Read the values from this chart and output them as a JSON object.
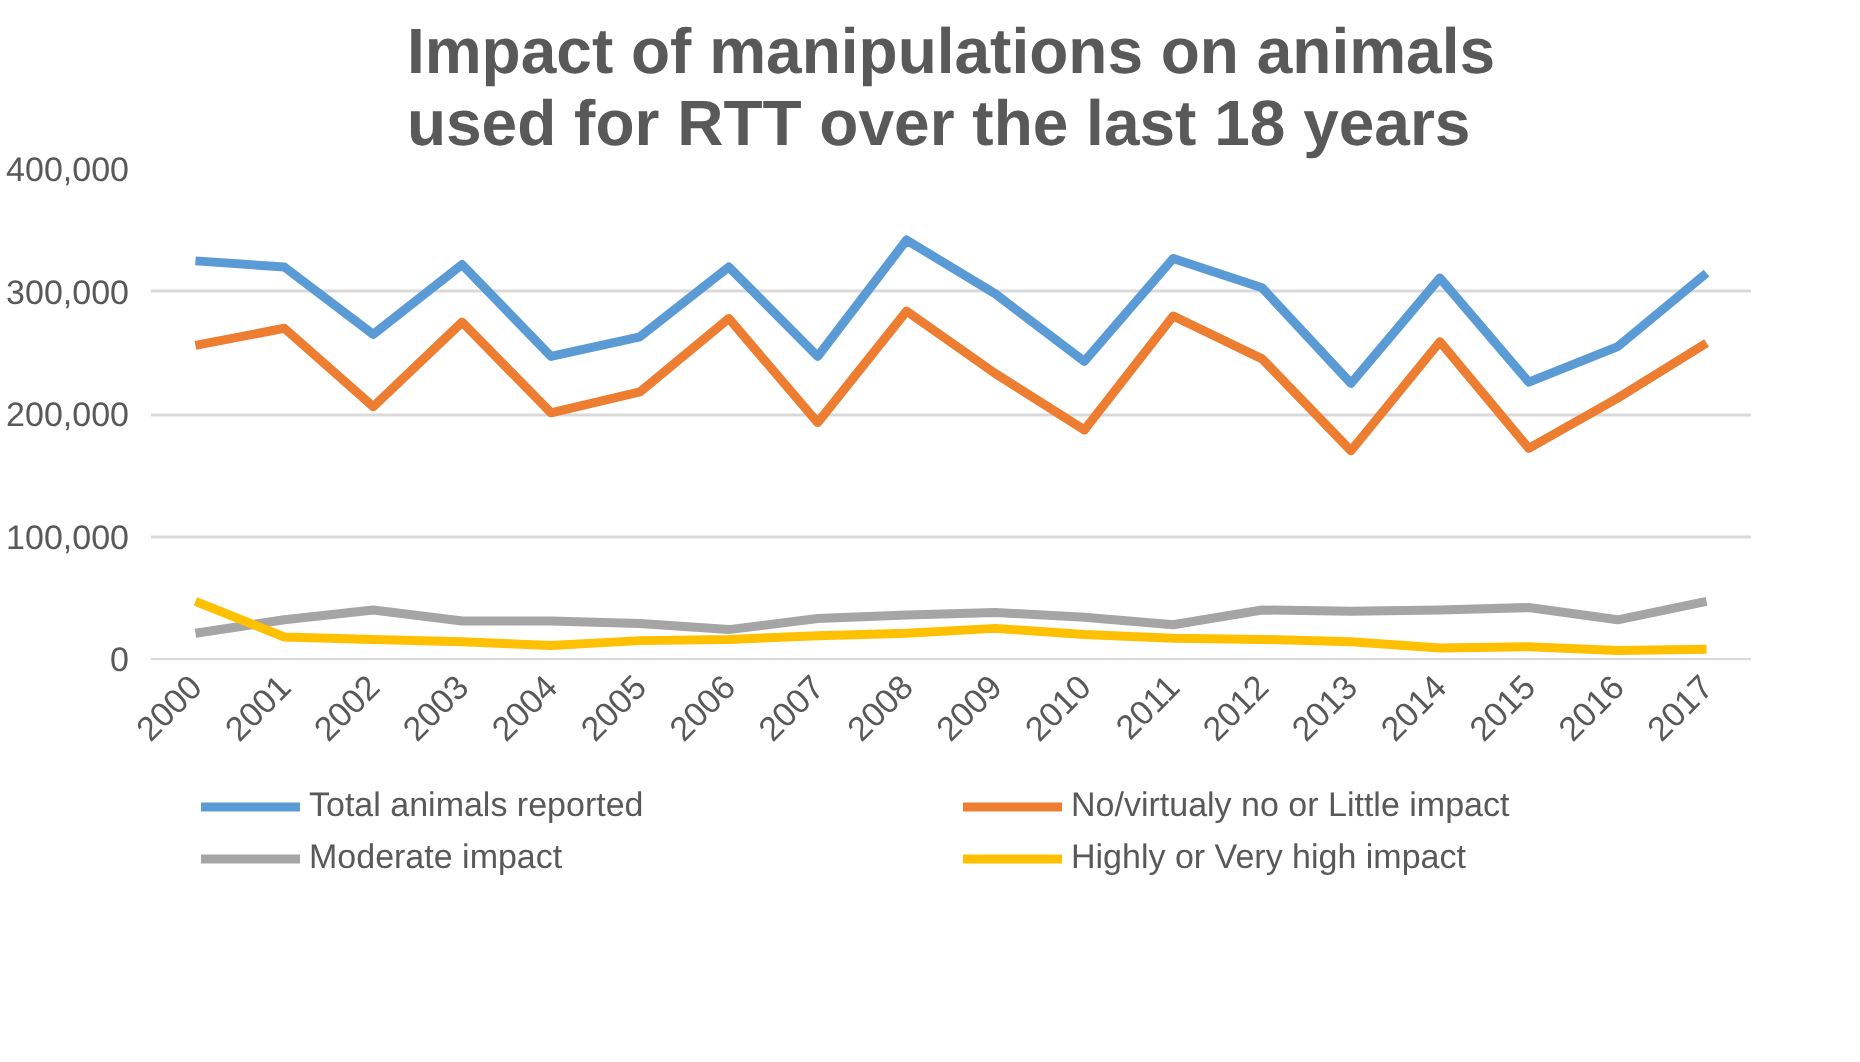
{
  "chart_data": {
    "type": "line",
    "title": "Impact of manipulations on animals used for RTT over the last 18 years",
    "categories": [
      "2000",
      "2001",
      "2002",
      "2003",
      "2004",
      "2005",
      "2006",
      "2007",
      "2008",
      "2009",
      "2010",
      "2011",
      "2012",
      "2013",
      "2014",
      "2015",
      "2016",
      "2017"
    ],
    "series": [
      {
        "name": "Total animals reported",
        "color": "#5b9bd5",
        "values": [
          325000,
          320000,
          265000,
          322000,
          247000,
          263000,
          320000,
          247000,
          342000,
          298000,
          243000,
          327000,
          303000,
          225000,
          311000,
          226000,
          255000,
          315000
        ]
      },
      {
        "name": "No/virtualy no or Little impact",
        "color": "#ed7d31",
        "values": [
          256000,
          270000,
          206000,
          275000,
          201000,
          218000,
          278000,
          193000,
          284000,
          233000,
          187000,
          280000,
          245000,
          170000,
          259000,
          172000,
          213000,
          258000
        ]
      },
      {
        "name": "Moderate impact",
        "color": "#a5a5a5",
        "values": [
          21000,
          32000,
          40000,
          31000,
          31000,
          29000,
          24000,
          33000,
          36000,
          38000,
          34000,
          28000,
          40000,
          39000,
          40000,
          42000,
          32000,
          47000
        ]
      },
      {
        "name": "Highly or Very high impact",
        "color": "#ffc000",
        "values": [
          47000,
          18000,
          16000,
          14000,
          11000,
          15000,
          16000,
          19000,
          21000,
          25000,
          20000,
          17000,
          16000,
          14000,
          9000,
          10000,
          7000,
          8000
        ]
      }
    ],
    "ylim": [
      0,
      400000
    ],
    "yticks": [
      {
        "value": 0,
        "label": "0"
      },
      {
        "value": 100000,
        "label": "100,000"
      },
      {
        "value": 200000,
        "label": "200,000"
      },
      {
        "value": 300000,
        "label": "300,000"
      },
      {
        "value": 400000,
        "label": "400,000"
      }
    ],
    "grid": "y",
    "legend": "bottom",
    "marker": "none",
    "line_style": "solid"
  }
}
